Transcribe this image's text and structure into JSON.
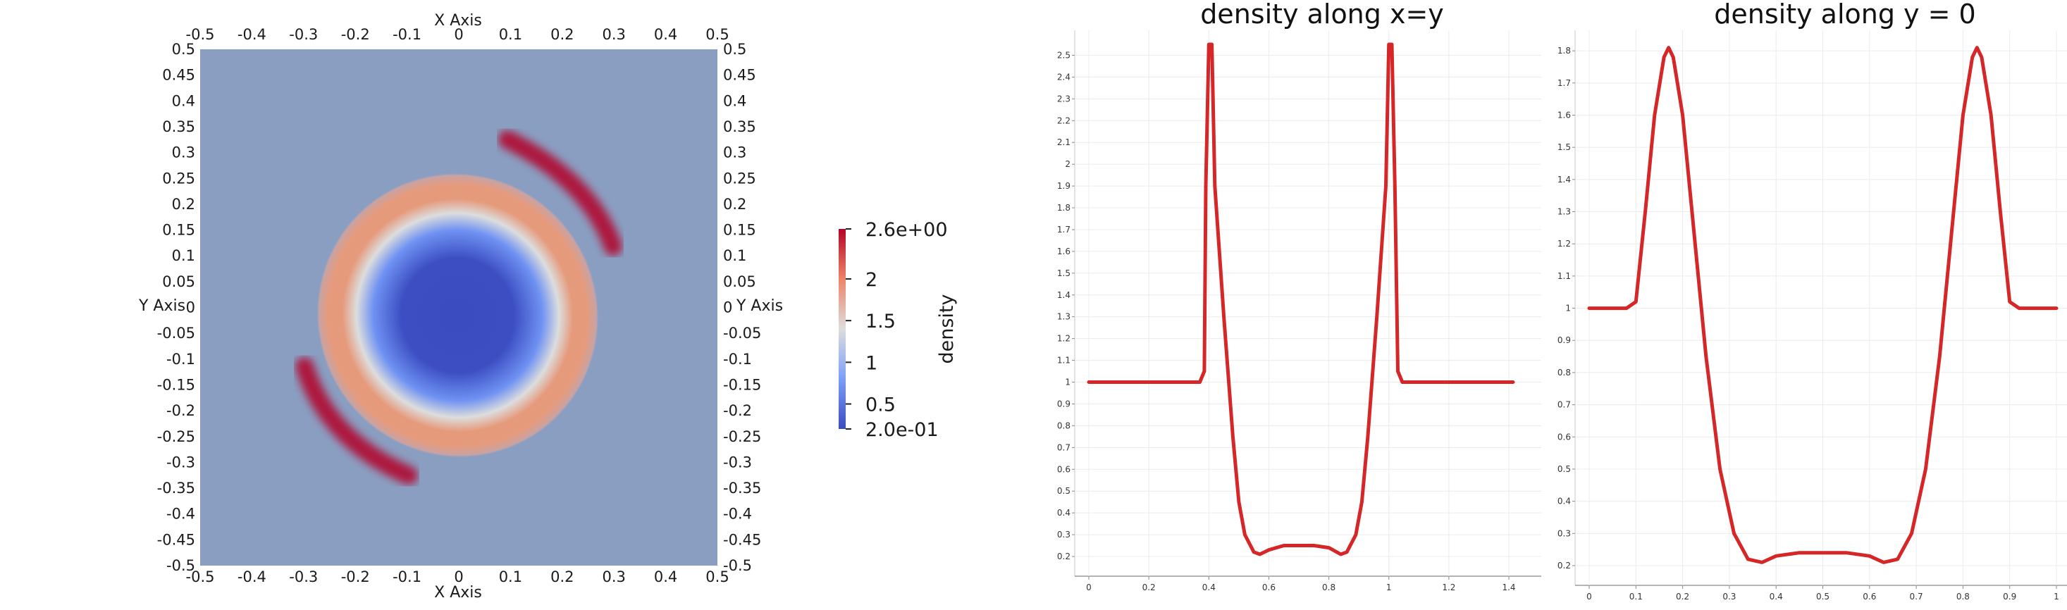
{
  "chart_data": [
    {
      "type": "heatmap",
      "title": "",
      "xlabel": "X Axis",
      "ylabel": "Y Axis",
      "xlim": [
        -0.5,
        0.5
      ],
      "ylim": [
        -0.5,
        0.5
      ],
      "x_ticks": [
        "-0.5",
        "-0.4",
        "-0.3",
        "-0.2",
        "-0.1",
        "0",
        "0.1",
        "0.2",
        "0.3",
        "0.4",
        "0.5"
      ],
      "y_ticks": [
        "0.5",
        "0.45",
        "0.4",
        "0.35",
        "0.3",
        "0.25",
        "0.2",
        "0.15",
        "0.1",
        "0.05",
        "0",
        "-0.05",
        "-0.1",
        "-0.15",
        "-0.2",
        "-0.25",
        "-0.3",
        "-0.35",
        "-0.4",
        "-0.45",
        "-0.5"
      ],
      "colorbar": {
        "title": "density",
        "range": [
          0.2,
          2.6
        ],
        "ticks": [
          "2.6e+00",
          "2",
          "1.5",
          "1",
          "0.5",
          "2.0e-01"
        ],
        "colormap": "cool to warm",
        "low_color": "#3b4cc0",
        "mid_color": "#dddddd",
        "high_color": "#b40426"
      },
      "field": {
        "background_value": 1.0,
        "background_color": "#8a9ec2",
        "inner_core_value": 0.22,
        "inner_core_radius": 0.2,
        "ring_radius": 0.3,
        "ring_peak_value": 2.55,
        "ring_band_color": "#e69a7c"
      }
    },
    {
      "type": "line",
      "title": "density along x=y",
      "xlim": [
        0,
        1.414
      ],
      "ylim": [
        0.2,
        2.55
      ],
      "x_ticks": [
        "0",
        "0.2",
        "0.4",
        "0.6",
        "0.8",
        "1",
        "1.2",
        "1.4"
      ],
      "y_ticks": [
        "0.2",
        "0.3",
        "0.4",
        "0.5",
        "0.6",
        "0.7",
        "0.8",
        "0.9",
        "1",
        "1.1",
        "1.2",
        "1.3",
        "1.4",
        "1.5",
        "1.6",
        "1.7",
        "1.8",
        "1.9",
        "2",
        "2.1",
        "2.2",
        "2.3",
        "2.4",
        "2.5"
      ],
      "grid": true,
      "series": [
        {
          "color": "#d62728",
          "x": [
            0,
            0.37,
            0.385,
            0.39,
            0.4,
            0.405,
            0.41,
            0.42,
            0.45,
            0.48,
            0.5,
            0.52,
            0.55,
            0.57,
            0.6,
            0.65,
            0.7,
            0.75,
            0.8,
            0.84,
            0.86,
            0.89,
            0.91,
            0.93,
            0.96,
            0.99,
            1.0,
            1.005,
            1.01,
            1.02,
            1.03,
            1.045,
            1.414
          ],
          "y": [
            1.0,
            1.0,
            1.05,
            1.9,
            2.55,
            2.55,
            2.55,
            1.9,
            1.3,
            0.75,
            0.45,
            0.3,
            0.22,
            0.21,
            0.23,
            0.25,
            0.25,
            0.25,
            0.24,
            0.21,
            0.22,
            0.3,
            0.45,
            0.75,
            1.3,
            1.9,
            2.55,
            2.55,
            2.55,
            1.9,
            1.05,
            1.0,
            1.0
          ]
        }
      ]
    },
    {
      "type": "line",
      "title": "density along y = 0",
      "xlim": [
        0,
        1
      ],
      "ylim": [
        0.2,
        1.82
      ],
      "x_ticks": [
        "0",
        "0.1",
        "0.2",
        "0.3",
        "0.4",
        "0.5",
        "0.6",
        "0.7",
        "0.8",
        "0.9",
        "1"
      ],
      "y_ticks": [
        "0.2",
        "0.3",
        "0.4",
        "0.5",
        "0.6",
        "0.7",
        "0.8",
        "0.9",
        "1",
        "1.1",
        "1.2",
        "1.3",
        "1.4",
        "1.5",
        "1.6",
        "1.7",
        "1.8"
      ],
      "grid": true,
      "series": [
        {
          "color": "#d62728",
          "x": [
            0,
            0.08,
            0.1,
            0.12,
            0.14,
            0.16,
            0.17,
            0.18,
            0.2,
            0.22,
            0.25,
            0.28,
            0.31,
            0.34,
            0.37,
            0.4,
            0.45,
            0.5,
            0.55,
            0.6,
            0.63,
            0.66,
            0.69,
            0.72,
            0.75,
            0.78,
            0.8,
            0.82,
            0.83,
            0.84,
            0.86,
            0.88,
            0.9,
            0.92,
            1.0
          ],
          "y": [
            1.0,
            1.0,
            1.02,
            1.3,
            1.6,
            1.78,
            1.81,
            1.78,
            1.6,
            1.3,
            0.85,
            0.5,
            0.3,
            0.22,
            0.21,
            0.23,
            0.24,
            0.24,
            0.24,
            0.23,
            0.21,
            0.22,
            0.3,
            0.5,
            0.85,
            1.3,
            1.6,
            1.78,
            1.81,
            1.78,
            1.6,
            1.3,
            1.02,
            1.0,
            1.0
          ]
        }
      ]
    }
  ]
}
